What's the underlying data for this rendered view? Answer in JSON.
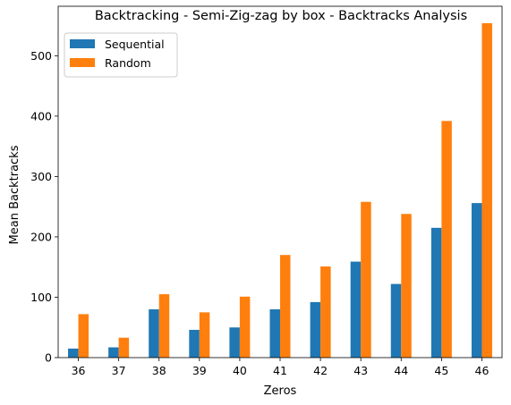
{
  "chart_data": {
    "type": "bar",
    "title": "Backtracking - Semi-Zig-zag by box - Backtracks Analysis",
    "xlabel": "Zeros",
    "ylabel": "Mean Backtracks",
    "categories": [
      "36",
      "37",
      "38",
      "39",
      "40",
      "41",
      "42",
      "43",
      "44",
      "45",
      "46"
    ],
    "series": [
      {
        "name": "Sequential",
        "color": "#1f77b4",
        "values": [
          15,
          17,
          80,
          46,
          50,
          80,
          92,
          159,
          122,
          215,
          256
        ]
      },
      {
        "name": "Random",
        "color": "#ff7f0e",
        "values": [
          72,
          33,
          105,
          75,
          101,
          170,
          151,
          258,
          238,
          392,
          554
        ]
      }
    ],
    "ylim": [
      0,
      582
    ],
    "yticks": [
      0,
      100,
      200,
      300,
      400,
      500
    ],
    "legend_position": "top-left",
    "grid": false
  }
}
